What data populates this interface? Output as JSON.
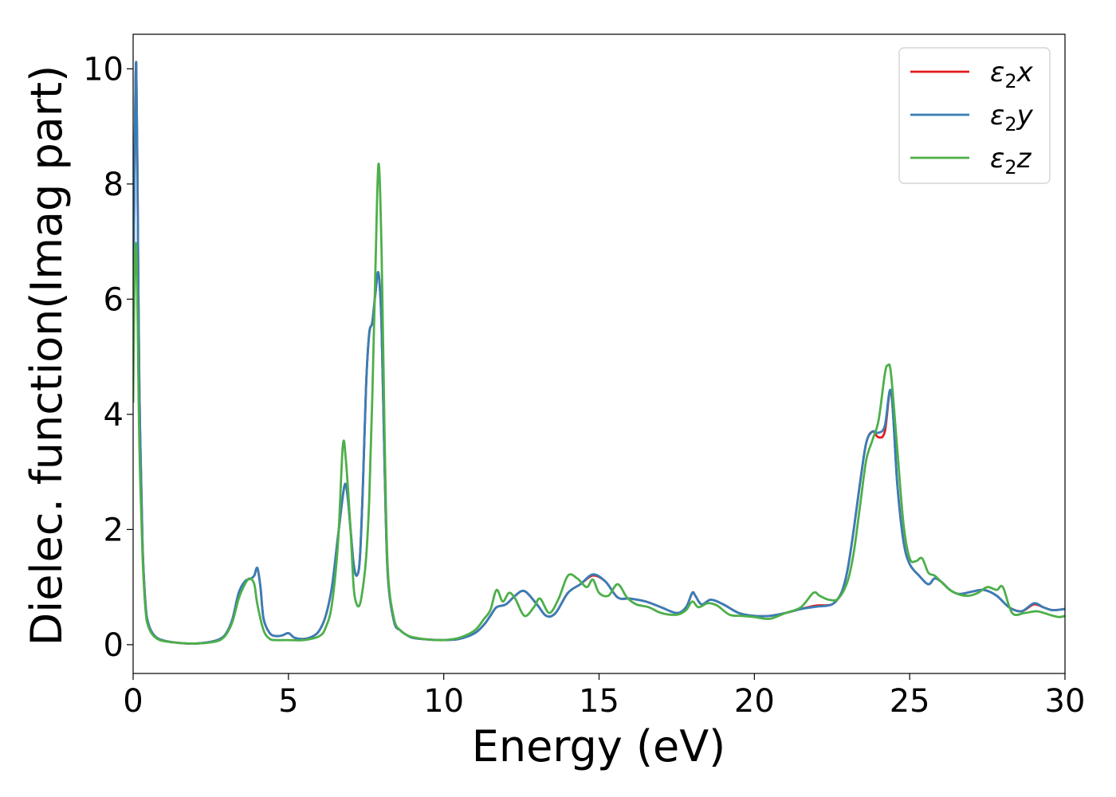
{
  "chart_data": {
    "type": "line",
    "xlabel": "Energy (eV)",
    "ylabel": "Dielec. function(Imag part)",
    "xlim": [
      0,
      30
    ],
    "ylim": [
      -0.5,
      10.6
    ],
    "xticks": [
      0,
      5,
      10,
      15,
      20,
      25,
      30
    ],
    "xtick_labels": [
      "0",
      "5",
      "10",
      "15",
      "20",
      "25",
      "30"
    ],
    "yticks": [
      0,
      2,
      4,
      6,
      8,
      10
    ],
    "ytick_labels": [
      "0",
      "2",
      "4",
      "6",
      "8",
      "10"
    ],
    "legend_position": "top-right",
    "grid": false,
    "series": [
      {
        "name": "ε2x",
        "legend_base": "ε",
        "legend_sub": "2",
        "legend_suffix": "x",
        "color": "#e41a1c",
        "x": [
          0.0,
          0.05,
          0.1,
          0.15,
          0.2,
          0.3,
          0.4,
          0.5,
          0.7,
          1.0,
          1.5,
          2.0,
          2.5,
          2.8,
          3.0,
          3.2,
          3.4,
          3.6,
          3.8,
          3.9,
          4.0,
          4.1,
          4.2,
          4.4,
          4.6,
          4.8,
          5.0,
          5.2,
          5.5,
          5.8,
          6.0,
          6.2,
          6.4,
          6.6,
          6.8,
          6.9,
          7.0,
          7.1,
          7.2,
          7.3,
          7.4,
          7.5,
          7.6,
          7.7,
          7.8,
          7.9,
          8.0,
          8.1,
          8.2,
          8.4,
          8.6,
          8.8,
          9.0,
          9.5,
          10.0,
          10.5,
          11.0,
          11.3,
          11.5,
          11.7,
          12.0,
          12.3,
          12.6,
          13.0,
          13.3,
          13.6,
          14.0,
          14.4,
          14.8,
          15.2,
          15.6,
          16.0,
          16.5,
          17.0,
          17.5,
          17.8,
          18.0,
          18.1,
          18.3,
          18.6,
          19.0,
          19.5,
          20.0,
          20.5,
          21.0,
          21.5,
          22.0,
          22.5,
          22.8,
          23.0,
          23.2,
          23.4,
          23.6,
          23.8,
          24.0,
          24.2,
          24.4,
          24.6,
          24.8,
          25.0,
          25.3,
          25.6,
          25.8,
          26.0,
          26.3,
          26.6,
          27.0,
          27.4,
          27.8,
          28.2,
          28.6,
          29.0,
          29.3,
          29.6,
          30.0
        ],
        "values": [
          5.5,
          8.5,
          10.1,
          7.5,
          4.5,
          1.8,
          0.7,
          0.35,
          0.15,
          0.07,
          0.03,
          0.02,
          0.05,
          0.1,
          0.2,
          0.45,
          0.9,
          1.1,
          1.15,
          1.2,
          1.33,
          1.0,
          0.45,
          0.2,
          0.15,
          0.16,
          0.2,
          0.12,
          0.1,
          0.15,
          0.25,
          0.5,
          1.0,
          1.9,
          2.75,
          2.6,
          2.0,
          1.4,
          1.2,
          1.5,
          2.8,
          4.5,
          5.4,
          5.6,
          6.1,
          6.45,
          5.5,
          3.0,
          1.2,
          0.4,
          0.25,
          0.17,
          0.12,
          0.09,
          0.08,
          0.1,
          0.2,
          0.35,
          0.5,
          0.65,
          0.7,
          0.85,
          0.93,
          0.7,
          0.5,
          0.55,
          0.9,
          1.05,
          1.2,
          1.1,
          0.82,
          0.8,
          0.75,
          0.65,
          0.55,
          0.65,
          0.9,
          0.85,
          0.7,
          0.78,
          0.7,
          0.55,
          0.5,
          0.5,
          0.55,
          0.62,
          0.68,
          0.7,
          0.9,
          1.3,
          2.0,
          2.8,
          3.5,
          3.7,
          3.6,
          3.7,
          4.4,
          2.8,
          1.8,
          1.4,
          1.2,
          1.05,
          1.15,
          1.1,
          0.95,
          0.88,
          0.92,
          0.95,
          0.85,
          0.65,
          0.58,
          0.7,
          0.65,
          0.6,
          0.62
        ],
        "values_note": ""
      },
      {
        "name": "ε2y",
        "legend_base": "ε",
        "legend_sub": "2",
        "legend_suffix": "y",
        "color": "#377eb8",
        "x": [
          0.0,
          0.05,
          0.1,
          0.15,
          0.2,
          0.3,
          0.4,
          0.5,
          0.7,
          1.0,
          1.5,
          2.0,
          2.5,
          2.8,
          3.0,
          3.2,
          3.4,
          3.6,
          3.8,
          3.9,
          4.0,
          4.1,
          4.2,
          4.4,
          4.6,
          4.8,
          5.0,
          5.2,
          5.5,
          5.8,
          6.0,
          6.2,
          6.4,
          6.6,
          6.8,
          6.9,
          7.0,
          7.1,
          7.2,
          7.3,
          7.4,
          7.5,
          7.6,
          7.7,
          7.8,
          7.9,
          8.0,
          8.1,
          8.2,
          8.4,
          8.6,
          8.8,
          9.0,
          9.5,
          10.0,
          10.5,
          11.0,
          11.3,
          11.5,
          11.7,
          12.0,
          12.3,
          12.6,
          13.0,
          13.3,
          13.6,
          14.0,
          14.4,
          14.8,
          15.2,
          15.6,
          16.0,
          16.5,
          17.0,
          17.5,
          17.8,
          18.0,
          18.1,
          18.3,
          18.6,
          19.0,
          19.5,
          20.0,
          20.5,
          21.0,
          21.5,
          22.0,
          22.5,
          22.8,
          23.0,
          23.2,
          23.4,
          23.6,
          23.8,
          24.0,
          24.2,
          24.4,
          24.6,
          24.8,
          25.0,
          25.3,
          25.6,
          25.8,
          26.0,
          26.3,
          26.6,
          27.0,
          27.4,
          27.8,
          28.2,
          28.6,
          29.0,
          29.3,
          29.6,
          30.0
        ],
        "values": [
          5.5,
          8.5,
          10.1,
          7.5,
          4.5,
          1.8,
          0.7,
          0.35,
          0.15,
          0.07,
          0.03,
          0.02,
          0.05,
          0.1,
          0.2,
          0.45,
          0.9,
          1.1,
          1.15,
          1.2,
          1.33,
          1.0,
          0.45,
          0.2,
          0.15,
          0.16,
          0.2,
          0.12,
          0.1,
          0.15,
          0.25,
          0.5,
          1.0,
          1.9,
          2.75,
          2.6,
          2.0,
          1.4,
          1.2,
          1.5,
          2.8,
          4.5,
          5.4,
          5.6,
          6.1,
          6.45,
          5.5,
          3.0,
          1.2,
          0.4,
          0.25,
          0.17,
          0.12,
          0.09,
          0.08,
          0.1,
          0.2,
          0.35,
          0.5,
          0.65,
          0.7,
          0.85,
          0.93,
          0.7,
          0.5,
          0.55,
          0.9,
          1.05,
          1.22,
          1.1,
          0.82,
          0.8,
          0.75,
          0.65,
          0.55,
          0.65,
          0.9,
          0.85,
          0.7,
          0.78,
          0.7,
          0.55,
          0.5,
          0.5,
          0.55,
          0.62,
          0.66,
          0.7,
          0.9,
          1.3,
          2.0,
          2.8,
          3.5,
          3.7,
          3.68,
          3.8,
          4.4,
          2.8,
          1.8,
          1.4,
          1.2,
          1.05,
          1.15,
          1.1,
          0.95,
          0.88,
          0.92,
          0.95,
          0.85,
          0.65,
          0.58,
          0.72,
          0.65,
          0.6,
          0.62
        ]
      },
      {
        "name": "ε2z",
        "legend_base": "ε",
        "legend_sub": "2",
        "legend_suffix": "z",
        "color": "#4daf4a",
        "x": [
          0.0,
          0.05,
          0.1,
          0.15,
          0.2,
          0.3,
          0.4,
          0.5,
          0.7,
          1.0,
          1.5,
          2.0,
          2.5,
          2.8,
          3.0,
          3.2,
          3.4,
          3.6,
          3.75,
          3.9,
          4.0,
          4.2,
          4.4,
          4.6,
          5.0,
          5.5,
          6.0,
          6.2,
          6.4,
          6.6,
          6.75,
          6.85,
          7.0,
          7.1,
          7.2,
          7.3,
          7.4,
          7.5,
          7.6,
          7.7,
          7.8,
          7.9,
          8.0,
          8.1,
          8.2,
          8.4,
          8.6,
          8.8,
          9.0,
          9.5,
          10.0,
          10.5,
          11.0,
          11.3,
          11.5,
          11.7,
          11.9,
          12.1,
          12.3,
          12.6,
          12.9,
          13.1,
          13.4,
          13.7,
          14.0,
          14.3,
          14.6,
          14.8,
          15.0,
          15.3,
          15.6,
          15.9,
          16.2,
          16.6,
          17.0,
          17.5,
          17.8,
          18.0,
          18.2,
          18.5,
          18.8,
          19.2,
          19.6,
          20.0,
          20.5,
          21.0,
          21.5,
          21.9,
          22.1,
          22.4,
          22.7,
          23.0,
          23.2,
          23.4,
          23.6,
          23.8,
          24.0,
          24.2,
          24.3,
          24.4,
          24.6,
          24.8,
          25.0,
          25.2,
          25.4,
          25.6,
          25.8,
          26.0,
          26.3,
          26.6,
          26.9,
          27.2,
          27.5,
          27.8,
          28.0,
          28.3,
          28.7,
          29.1,
          29.5,
          29.8,
          30.0
        ],
        "values": [
          4.2,
          6.5,
          6.9,
          5.5,
          3.5,
          1.6,
          0.6,
          0.3,
          0.13,
          0.06,
          0.03,
          0.02,
          0.04,
          0.08,
          0.18,
          0.4,
          0.8,
          1.05,
          1.15,
          1.05,
          0.7,
          0.25,
          0.1,
          0.08,
          0.08,
          0.08,
          0.15,
          0.3,
          0.7,
          1.8,
          3.45,
          3.2,
          2.0,
          1.0,
          0.7,
          0.7,
          1.0,
          1.5,
          2.5,
          4.3,
          6.5,
          8.35,
          6.8,
          3.5,
          1.3,
          0.45,
          0.25,
          0.17,
          0.13,
          0.09,
          0.08,
          0.12,
          0.25,
          0.45,
          0.6,
          0.95,
          0.75,
          0.9,
          0.8,
          0.5,
          0.65,
          0.8,
          0.55,
          0.8,
          1.2,
          1.15,
          1.0,
          1.13,
          0.9,
          0.85,
          1.05,
          0.82,
          0.7,
          0.65,
          0.55,
          0.52,
          0.6,
          0.75,
          0.65,
          0.72,
          0.68,
          0.52,
          0.5,
          0.48,
          0.45,
          0.55,
          0.65,
          0.9,
          0.85,
          0.78,
          0.8,
          1.1,
          1.6,
          2.4,
          3.2,
          3.55,
          3.9,
          4.7,
          4.85,
          4.7,
          3.4,
          2.1,
          1.5,
          1.45,
          1.5,
          1.25,
          1.2,
          1.1,
          0.95,
          0.87,
          0.85,
          0.9,
          1.0,
          0.95,
          1.0,
          0.55,
          0.55,
          0.58,
          0.52,
          0.48,
          0.5
        ],
        "values_note": ""
      }
    ]
  }
}
